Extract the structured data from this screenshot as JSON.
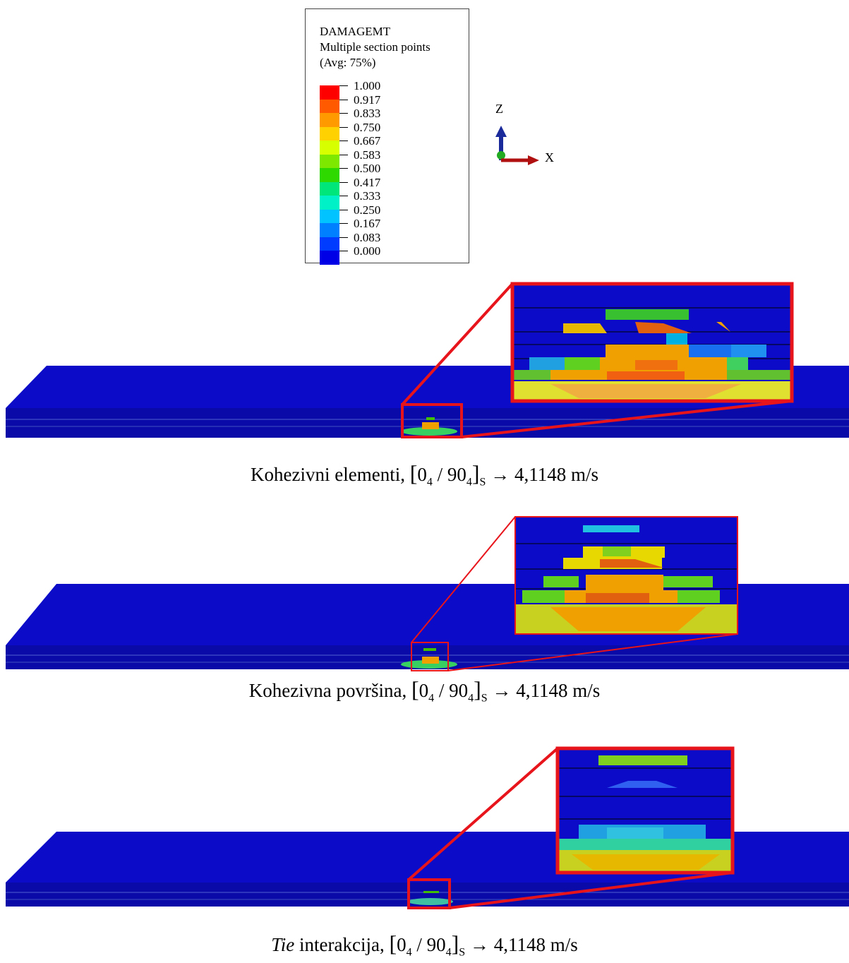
{
  "legend": {
    "variable": "DAMAGEMT",
    "subtitle": "Multiple section points",
    "averaging": "(Avg: 75%)",
    "entries": [
      {
        "value": "1.000",
        "color": "#ff0000"
      },
      {
        "value": "0.917",
        "color": "#ff5a00"
      },
      {
        "value": "0.833",
        "color": "#ff9a00"
      },
      {
        "value": "0.750",
        "color": "#ffd100"
      },
      {
        "value": "0.667",
        "color": "#d7ff00"
      },
      {
        "value": "0.583",
        "color": "#7fe800"
      },
      {
        "value": "0.500",
        "color": "#2ed900"
      },
      {
        "value": "0.417",
        "color": "#00e67a"
      },
      {
        "value": "0.333",
        "color": "#00f0c8"
      },
      {
        "value": "0.250",
        "color": "#00c3ff"
      },
      {
        "value": "0.167",
        "color": "#0080ff"
      },
      {
        "value": "0.083",
        "color": "#003cff"
      },
      {
        "value": "0.000",
        "color": "#0000e6"
      }
    ]
  },
  "axes": {
    "z_label": "Z",
    "x_label": "X"
  },
  "panels": [
    {
      "name": "Kohezivni elementi,",
      "italic": false,
      "rest": "",
      "layup_a": "0",
      "sub_a": "4",
      "layup_b": "90",
      "sub_b": "4",
      "sym": "S",
      "arrow": "→",
      "velocity": "4,1148 m/s"
    },
    {
      "name": "Kohezivna površina,",
      "italic": false,
      "rest": "",
      "layup_a": "0",
      "sub_a": "4",
      "layup_b": "90",
      "sub_b": "4",
      "sym": "S",
      "arrow": "→",
      "velocity": "4,1148 m/s"
    },
    {
      "name": "Tie",
      "italic": true,
      "rest": " interakcija,",
      "layup_a": "0",
      "sub_a": "4",
      "layup_b": "90",
      "sub_b": "4",
      "sym": "S",
      "arrow": "→",
      "velocity": "4,1148 m/s"
    }
  ],
  "colors": {
    "plate": "#0b0bc8",
    "zoom_frame": "#e8141b"
  }
}
